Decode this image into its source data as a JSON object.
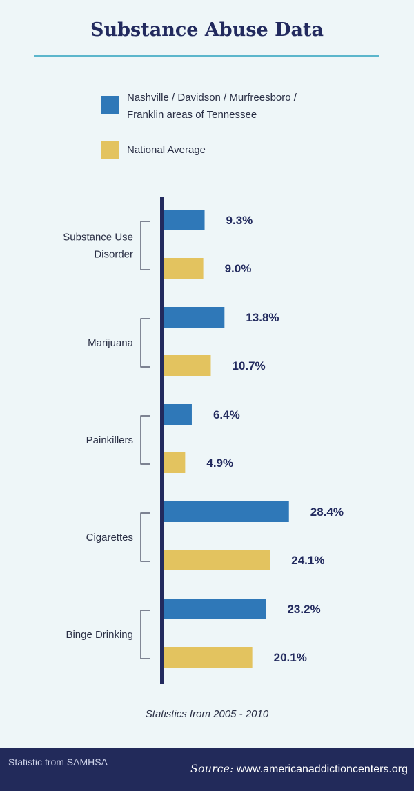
{
  "title": "Substance Abuse Data",
  "legend": [
    {
      "label": "Nashville / Davidson / Murfreesboro / Franklin areas of Tennessee",
      "color": "#2f78b8"
    },
    {
      "label": "National Average",
      "color": "#e3c35f"
    }
  ],
  "chart_data": {
    "type": "bar",
    "orientation": "horizontal",
    "categories": [
      "Substance Use Disorder",
      "Marijuana",
      "Painkillers",
      "Cigarettes",
      "Binge Drinking"
    ],
    "series": [
      {
        "name": "Nashville / Davidson / Murfreesboro / Franklin areas of Tennessee",
        "color": "#2f78b8",
        "values": [
          9.3,
          13.8,
          6.4,
          28.4,
          23.2
        ],
        "labels": [
          "9.3%",
          "13.8%",
          "6.4%",
          "28.4%",
          "23.2%"
        ]
      },
      {
        "name": "National Average",
        "color": "#e3c35f",
        "values": [
          9.0,
          10.7,
          4.9,
          24.1,
          20.1
        ],
        "labels": [
          "9.0%",
          "10.7%",
          "4.9%",
          "24.1%",
          "20.1%"
        ]
      }
    ],
    "unit": "%",
    "grid": false,
    "legend_position": "top"
  },
  "note": "Statistics from 2005 - 2010",
  "footer": {
    "credit": "Statistic from SAMHSA",
    "source_label": "Source:",
    "source_url": "www.americanaddictioncenters.org"
  }
}
